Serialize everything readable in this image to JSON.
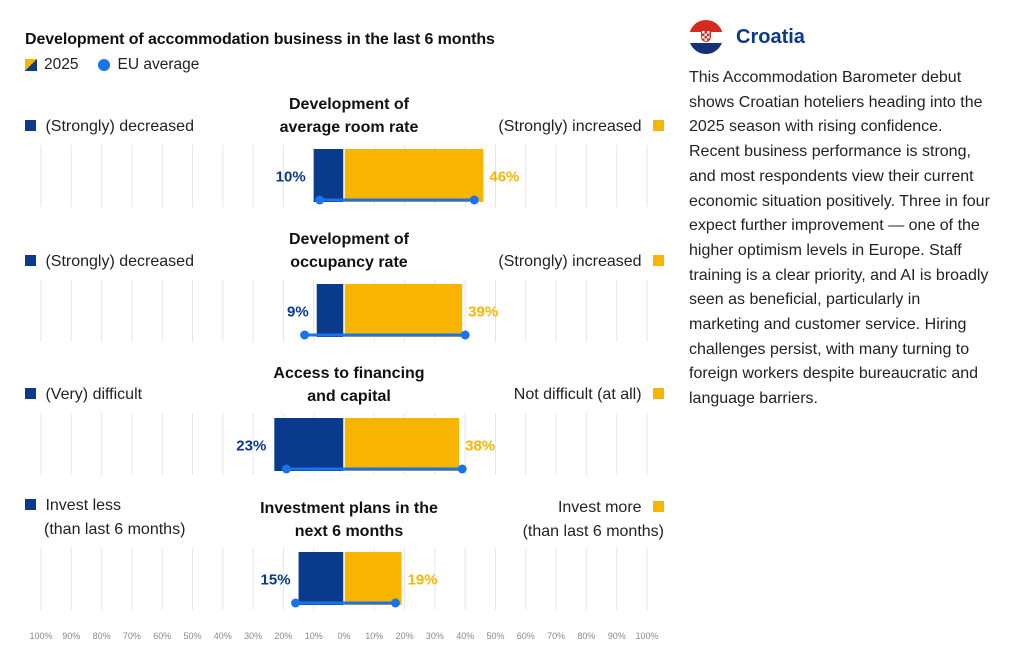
{
  "title": "Development of accommodation business in the last 6 months",
  "legend": {
    "series_2025": "2025",
    "eu_average": "EU average"
  },
  "colors": {
    "decrease": "#0a3a8c",
    "increase": "#f7b500",
    "eu_marker": "#1a73e8",
    "country_name": "#0a3a8c"
  },
  "country": {
    "name": "Croatia",
    "flag_icon": "croatia-flag-icon",
    "description": "This Accommodation Barometer debut shows Croatian hoteliers heading into the 2025 season with rising confidence. Recent business performance is strong, and most respondents view their current economic situation positively. Three in four expect further improvement — one of the higher optimism levels in Europe. Staff training is a clear priority, and AI is broadly seen as beneficial, particularly in marketing and customer service. Hiring challenges persist, with many turning to foreign workers despite bureaucratic and language barriers."
  },
  "panels": [
    {
      "title_line1": "Development of",
      "title_line2": "average room rate",
      "left_label1": "(Strongly) decreased",
      "left_label2": "",
      "right_label1": "(Strongly) increased",
      "right_label2": ""
    },
    {
      "title_line1": "Development of",
      "title_line2": "occupancy rate",
      "left_label1": "(Strongly) decreased",
      "left_label2": "",
      "right_label1": "(Strongly) increased",
      "right_label2": ""
    },
    {
      "title_line1": "Access to financing",
      "title_line2": "and capital",
      "left_label1": "(Very) difficult",
      "left_label2": "",
      "right_label1": "Not difficult (at all)",
      "right_label2": ""
    },
    {
      "title_line1": "Investment plans in the",
      "title_line2": "next 6 months",
      "left_label1": "Invest less",
      "left_label2": "(than last 6 months)",
      "right_label1": "Invest more",
      "right_label2": "(than last 6 months)"
    }
  ],
  "chart_data": {
    "type": "bar",
    "orientation": "horizontal-diverging",
    "categories": [
      "Development of average room rate",
      "Development of occupancy rate",
      "Access to financing and capital",
      "Investment plans in the next 6 months"
    ],
    "series": [
      {
        "name": "2025",
        "negative_values": [
          10,
          9,
          23,
          15
        ],
        "positive_values": [
          46,
          39,
          38,
          19
        ],
        "negative_labels": [
          "10%",
          "9%",
          "23%",
          "15%"
        ],
        "positive_labels": [
          "46%",
          "39%",
          "38%",
          "19%"
        ]
      },
      {
        "name": "EU average",
        "negative_values": [
          8,
          13,
          19,
          16
        ],
        "positive_values": [
          43,
          40,
          39,
          17
        ]
      }
    ],
    "x_ticks": [
      "100%",
      "90%",
      "80%",
      "70%",
      "60%",
      "50%",
      "40%",
      "30%",
      "20%",
      "10%",
      "0%",
      "10%",
      "20%",
      "30%",
      "40%",
      "50%",
      "60%",
      "70%",
      "80%",
      "90%",
      "100%"
    ],
    "xlim": [
      -100,
      100
    ],
    "grid": true
  }
}
